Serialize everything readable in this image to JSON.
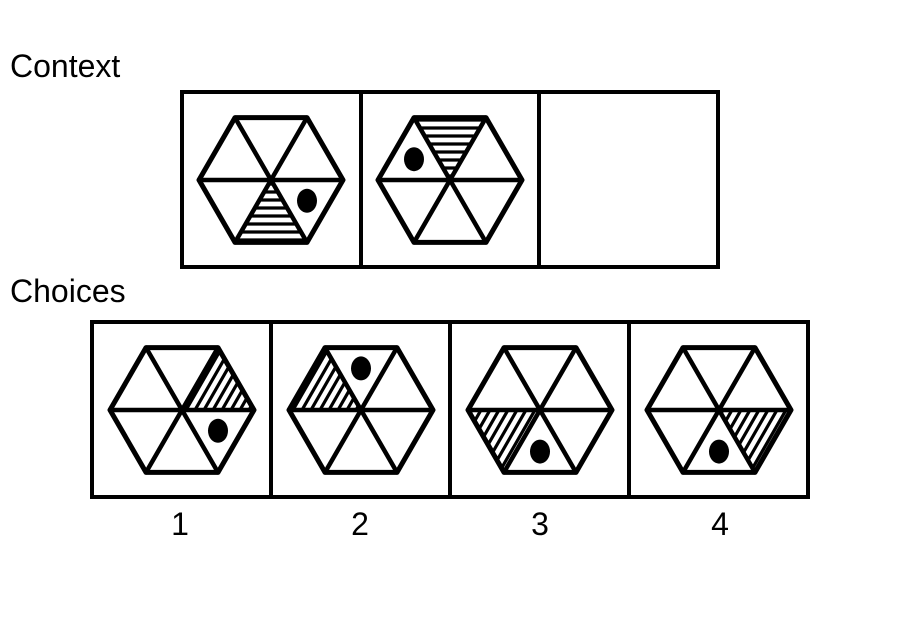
{
  "labels": {
    "context": "Context",
    "choices": "Choices"
  },
  "context_panels": [
    {
      "has_figure": true,
      "hatched_sector": "bottom",
      "hatch_direction": "horizontal",
      "dot_sector": "lower-right"
    },
    {
      "has_figure": true,
      "hatched_sector": "top",
      "hatch_direction": "horizontal",
      "dot_sector": "upper-left"
    },
    {
      "has_figure": false
    }
  ],
  "choices": [
    {
      "number": "1",
      "hatched_sector": "upper-right",
      "hatch_direction": "diagonal",
      "dot_sector": "lower-right"
    },
    {
      "number": "2",
      "hatched_sector": "upper-left",
      "hatch_direction": "diagonal",
      "dot_sector": "top"
    },
    {
      "number": "3",
      "hatched_sector": "lower-left",
      "hatch_direction": "diagonal",
      "dot_sector": "bottom"
    },
    {
      "number": "4",
      "hatched_sector": "lower-right",
      "hatch_direction": "diagonal",
      "dot_sector": "bottom"
    }
  ],
  "colors": {
    "ink": "#000000",
    "background": "#ffffff"
  }
}
